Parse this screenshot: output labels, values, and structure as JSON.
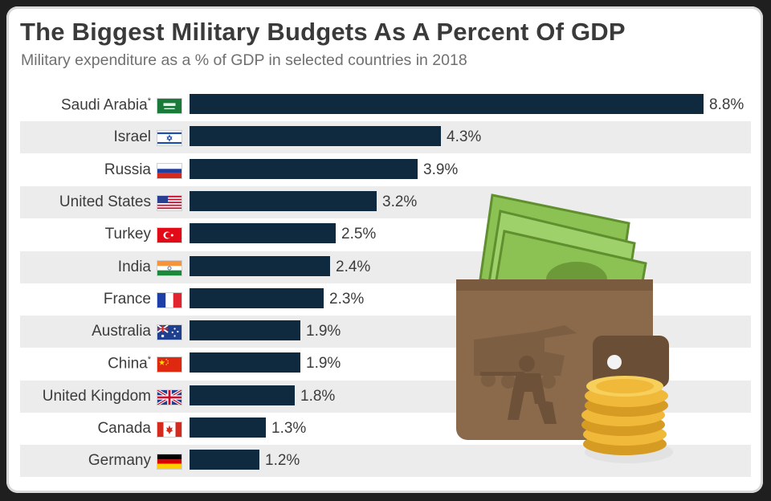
{
  "header": {
    "title": "The Biggest Military Budgets As A Percent Of GDP",
    "subtitle": "Military expenditure as a % of GDP in selected countries in 2018"
  },
  "chart_data": {
    "type": "bar",
    "orientation": "horizontal",
    "title": "The Biggest Military Budgets As A Percent Of GDP",
    "subtitle": "Military expenditure as a % of GDP in selected countries in 2018",
    "categories": [
      "Saudi Arabia",
      "Israel",
      "Russia",
      "United States",
      "Turkey",
      "India",
      "France",
      "Australia",
      "China",
      "United Kingdom",
      "Canada",
      "Germany"
    ],
    "values": [
      8.8,
      4.3,
      3.9,
      3.2,
      2.5,
      2.4,
      2.3,
      1.9,
      1.9,
      1.8,
      1.3,
      1.2
    ],
    "value_labels": [
      "8.8%",
      "4.3%",
      "3.9%",
      "3.2%",
      "2.5%",
      "2.4%",
      "2.3%",
      "1.9%",
      "1.9%",
      "1.8%",
      "1.3%",
      "1.2%"
    ],
    "footnote_marks": [
      "*",
      "",
      "",
      "",
      "",
      "",
      "",
      "",
      "*",
      "",
      "",
      ""
    ],
    "flags": [
      "saudi-arabia-flag-icon",
      "israel-flag-icon",
      "russia-flag-icon",
      "united-states-flag-icon",
      "turkey-flag-icon",
      "india-flag-icon",
      "france-flag-icon",
      "australia-flag-icon",
      "china-flag-icon",
      "united-kingdom-flag-icon",
      "canada-flag-icon",
      "germany-flag-icon"
    ],
    "bar_color": "#0f2a3f",
    "alternate_row_color": "#ececec",
    "xlim": [
      0,
      8.8
    ],
    "grid": false,
    "legend": "none"
  },
  "illustration": {
    "icon": "wallet-with-cash-and-coins-icon",
    "colors": {
      "wallet": "#8b6a4b",
      "cash": "#8cc153",
      "coins": "#f0b93a"
    }
  }
}
